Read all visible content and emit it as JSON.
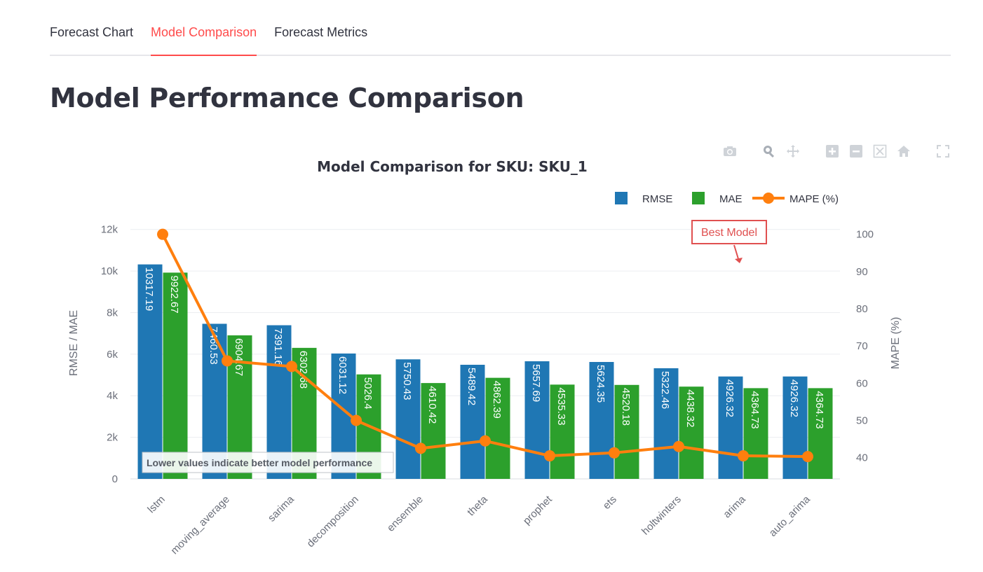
{
  "tabs": [
    {
      "label": "Forecast Chart",
      "active": false
    },
    {
      "label": "Model Comparison",
      "active": true
    },
    {
      "label": "Forecast Metrics",
      "active": false
    }
  ],
  "page_title": "Model Performance Comparison",
  "modebar_icons": [
    "camera-icon",
    "zoom-icon",
    "pan-icon",
    "zoom-in-icon",
    "zoom-out-icon",
    "autoscale-icon",
    "reset-axes-icon",
    "fullscreen-icon"
  ],
  "colors": {
    "rmse": "#1f77b4",
    "mae": "#2ca02c",
    "mape": "#ff7f0e",
    "annotation": "#e05050"
  },
  "chart_data": {
    "type": "bar",
    "title": "Model Comparison for SKU: SKU_1",
    "categories": [
      "lstm",
      "moving_average",
      "sarima",
      "decomposition",
      "ensemble",
      "theta",
      "prophet",
      "ets",
      "holtwinters",
      "arima",
      "auto_arima"
    ],
    "series": [
      {
        "name": "RMSE",
        "type": "bar",
        "axis": "y",
        "values": [
          10317.19,
          7460.53,
          7391.16,
          6031.12,
          5750.43,
          5489.42,
          5657.69,
          5624.35,
          5322.46,
          4926.32,
          4926.32
        ],
        "labels": [
          "10317.19",
          "7460.53",
          "7391.16",
          "6031.12",
          "5750.43",
          "5489.42",
          "5657.69",
          "5624.35",
          "5322.46",
          "4926.32",
          "4926.32"
        ]
      },
      {
        "name": "MAE",
        "type": "bar",
        "axis": "y",
        "values": [
          9922.67,
          6904.67,
          6302.68,
          5026.4,
          4610.42,
          4862.39,
          4535.33,
          4520.18,
          4438.32,
          4364.73,
          4364.73
        ],
        "labels": [
          "9922.67",
          "6904.67",
          "6302.68",
          "5026.4",
          "4610.42",
          "4862.39",
          "4535.33",
          "4520.18",
          "4438.32",
          "4364.73",
          "4364.73"
        ]
      },
      {
        "name": "MAPE (%)",
        "type": "line",
        "axis": "y2",
        "values": [
          100,
          66,
          64.5,
          50,
          42.5,
          44.5,
          40.5,
          41.3,
          43,
          40.5,
          40.3
        ]
      }
    ],
    "ylabel": "RMSE / MAE",
    "y2label": "MAPE (%)",
    "ylim": [
      0,
      13000
    ],
    "yticks": [
      0,
      2000,
      4000,
      6000,
      8000,
      10000,
      12000
    ],
    "ytick_labels": [
      "0",
      "2k",
      "4k",
      "6k",
      "8k",
      "10k",
      "12k"
    ],
    "y2lim": [
      34.3,
      106.9
    ],
    "y2ticks": [
      40,
      50,
      60,
      70,
      80,
      90,
      100
    ],
    "y2tick_labels": [
      "40",
      "50",
      "60",
      "70",
      "80",
      "90",
      "100"
    ],
    "grid": true,
    "legend": "top-right",
    "annotations": [
      {
        "text": "Best Model",
        "target": "auto_arima"
      },
      {
        "text": "Lower values indicate better model performance",
        "position": "bottom-left"
      }
    ]
  }
}
